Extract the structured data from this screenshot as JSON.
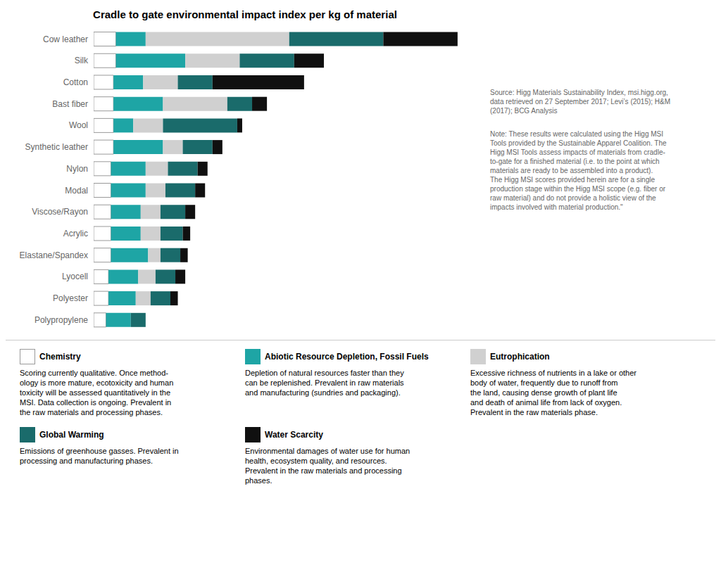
{
  "chart_data": {
    "type": "bar",
    "orientation": "horizontal",
    "stacked": true,
    "title": "Cradle to gate environmental impact index per kg of material",
    "categories": [
      "Cow leather",
      "Silk",
      "Cotton",
      "Bast fiber",
      "Wool",
      "Synthetic leather",
      "Nylon",
      "Modal",
      "Viscose/Rayon",
      "Acrylic",
      "Elastane/Spandex",
      "Lyocell",
      "Polyester",
      "Polypropylene"
    ],
    "series": [
      {
        "name": "Chemistry",
        "color": "#FFFFFF",
        "values": [
          9,
          9,
          8,
          8,
          8,
          8,
          7,
          7,
          7,
          7,
          7,
          6,
          6,
          5
        ]
      },
      {
        "name": "Abiotic Resource Depletion, Fossil Fuels",
        "color": "#1EA5A5",
        "values": [
          12,
          28,
          12,
          20,
          8,
          20,
          14,
          14,
          12,
          12,
          15,
          12,
          11,
          10
        ]
      },
      {
        "name": "Eutrophication",
        "color": "#D0D0D0",
        "values": [
          58,
          22,
          14,
          26,
          12,
          8,
          9,
          8,
          8,
          8,
          5,
          7,
          6,
          0
        ]
      },
      {
        "name": "Global Warming",
        "color": "#1A6B6B",
        "values": [
          38,
          22,
          14,
          10,
          30,
          12,
          12,
          12,
          10,
          9,
          8,
          8,
          8,
          6
        ]
      },
      {
        "name": "Water Scarcity",
        "color": "#101010",
        "values": [
          30,
          12,
          37,
          6,
          2,
          4,
          4,
          4,
          4,
          3,
          3,
          4,
          3,
          0
        ]
      }
    ],
    "xlim": [
      0,
      155
    ],
    "grid": false,
    "legend": "bottom",
    "tick_labels": "y",
    "annotations": [
      "Source: Higg Materials Sustainability Index, msi.higg.org,\ndata retrieved on 27 September 2017; Levi’s (2015); H&M\n(2017); BCG Analysis",
      "Note: These results were calculated using the Higg MSI\nTools provided by the Sustainable Apparel Coalition. The\nHigg MSI Tools assess impacts of materials from cradle-\nto-gate for a finished material (i.e. to the point at which\nmaterials are ready to be assembled into a product).\nThe Higg MSI scores provided herein are for a single\nproduction stage within the Higg MSI scope (e.g. fiber or\nraw material) and do not provide a holistic view of the\nimpacts involved with material production.\"",
      "Scoring currently qualitative. Once method-\nology is more mature, ecotoxicity and human\ntoxicity will be assessed quantitatively in the\nMSI. Data collection is ongoing. Prevalent in\nthe raw materials and processing phases.",
      "Depletion of natural resources faster than they\ncan be replenished. Prevalent in raw materials\nand manufacturing (sundries and packaging).",
      "Excessive richness of nutrients in a lake or other\nbody of water, frequently due to runoff from\nthe land, causing dense growth of plant life\nand death of animal life from lack of oxygen.\nPrevalent in the raw materials phase.",
      "Emissions of greenhouse gasses. Prevalent in\nprocessing and manufacturing phases.",
      "Environmental damages of water use for human\nhealth, ecosystem quality, and resources.\nPrevalent in the raw materials and processing\nphases."
    ]
  }
}
